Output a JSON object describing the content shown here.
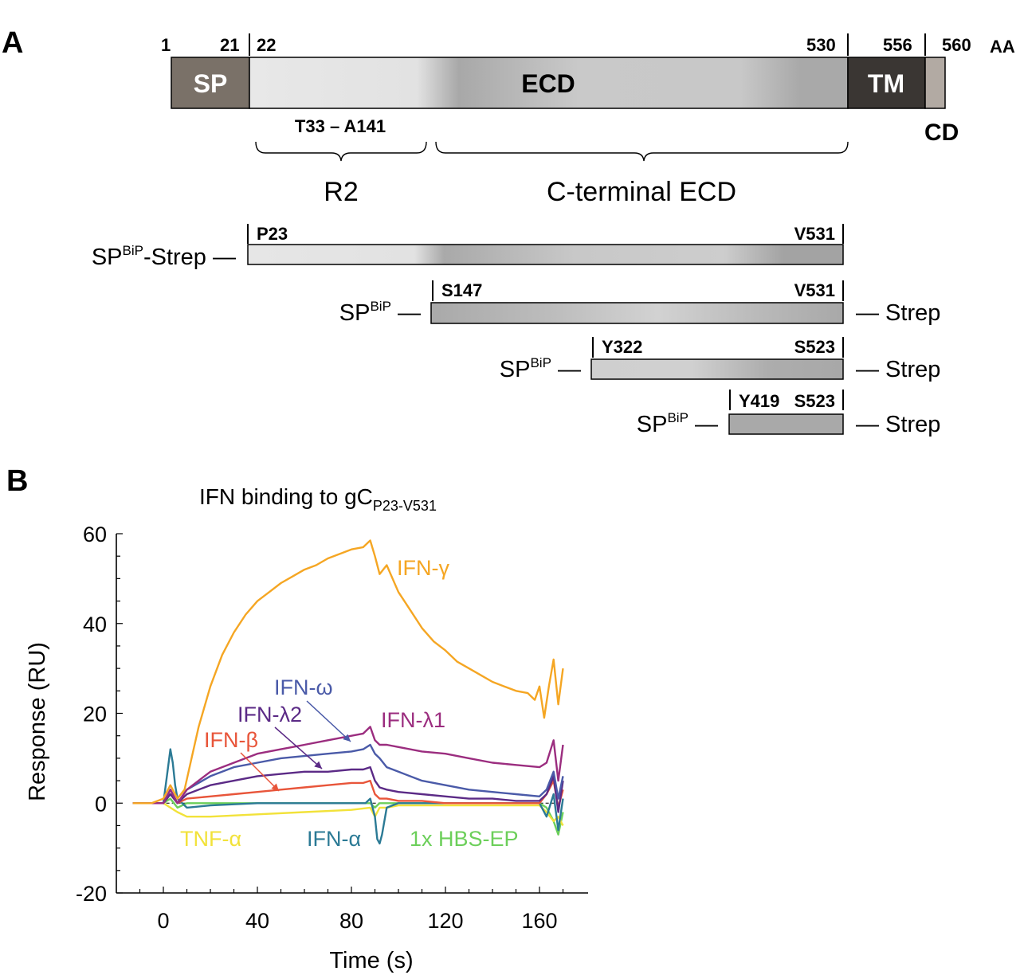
{
  "panel_a": {
    "label": "A",
    "positions": {
      "p1": "1",
      "p21": "21",
      "p22": "22",
      "p530": "530",
      "p556": "556",
      "p560": "560",
      "unit": "AA"
    },
    "domains": {
      "sp": "SP",
      "ecd": "ECD",
      "tm": "TM",
      "cd": "CD"
    },
    "range_label": "T33 – A141",
    "brace_r2": "R2",
    "brace_cterm": "C-terminal ECD",
    "constructs": [
      {
        "sp": "SP",
        "sup": "BiP",
        "prefix_suffix": "-Strep —",
        "start": "P23",
        "end": "V531",
        "suffix": ""
      },
      {
        "sp": "SP",
        "sup": "BiP",
        "prefix_suffix": " —",
        "start": "S147",
        "end": "V531",
        "suffix": "— Strep"
      },
      {
        "sp": "SP",
        "sup": "BiP",
        "prefix_suffix": " —",
        "start": "Y322",
        "end": "S523",
        "suffix": "— Strep"
      },
      {
        "sp": "SP",
        "sup": "BiP",
        "prefix_suffix": " —",
        "start": "Y419",
        "end": "S523",
        "suffix": "— Strep"
      }
    ]
  },
  "panel_b": {
    "label": "B"
  },
  "chart_data": {
    "type": "line",
    "title": "IFN binding to gC",
    "title_subscript": "P23-V531",
    "xlabel": "Time (s)",
    "ylabel": "Response (RU)",
    "xlim": [
      -15,
      170
    ],
    "ylim": [
      -20,
      60
    ],
    "xticks": [
      0,
      40,
      80,
      120,
      160
    ],
    "yticks": [
      -20,
      0,
      20,
      40,
      60
    ],
    "series": [
      {
        "name": "IFN-γ",
        "color": "#f5a623",
        "x": [
          -13,
          -5,
          0,
          3,
          6,
          9,
          12,
          15,
          20,
          25,
          30,
          35,
          40,
          45,
          50,
          55,
          60,
          65,
          70,
          75,
          80,
          85,
          88,
          90,
          92,
          95,
          100,
          105,
          110,
          115,
          120,
          125,
          130,
          135,
          140,
          145,
          150,
          155,
          158,
          160,
          162,
          164,
          166,
          168,
          170
        ],
        "y": [
          0,
          0,
          1,
          4,
          1,
          3,
          10,
          17,
          26,
          33,
          38,
          42,
          45,
          47,
          49,
          50.5,
          52,
          53,
          54.5,
          55.5,
          56.5,
          57,
          58.5,
          55,
          51,
          53,
          47,
          43,
          39,
          36,
          34,
          31.5,
          30,
          28.5,
          27,
          26,
          25,
          24.5,
          23,
          26,
          19,
          26,
          32,
          22,
          30
        ]
      },
      {
        "name": "IFN-λ1",
        "color": "#9b2d7f",
        "x": [
          -13,
          -5,
          0,
          3,
          6,
          10,
          20,
          30,
          40,
          50,
          60,
          70,
          80,
          85,
          88,
          90,
          92,
          95,
          100,
          110,
          120,
          130,
          140,
          150,
          160,
          163,
          166,
          168,
          170
        ],
        "y": [
          0,
          0,
          0,
          3,
          0,
          3,
          7,
          9,
          11,
          12,
          13,
          14,
          15,
          15.5,
          17,
          14,
          13,
          13,
          12.5,
          11.5,
          11,
          10,
          9,
          8.5,
          8,
          9,
          14,
          5,
          13
        ]
      },
      {
        "name": "IFN-ω",
        "color": "#4a5aa8",
        "x": [
          -13,
          -5,
          0,
          3,
          6,
          10,
          20,
          30,
          40,
          50,
          60,
          70,
          80,
          85,
          88,
          90,
          92,
          95,
          100,
          110,
          120,
          130,
          140,
          150,
          160,
          163,
          166,
          168,
          170
        ],
        "y": [
          0,
          0,
          0,
          3,
          0,
          3,
          6,
          8,
          9,
          10,
          10.5,
          11,
          11.5,
          12,
          13,
          11,
          10,
          8,
          7,
          5,
          4,
          3,
          2.5,
          2,
          1.5,
          3,
          7,
          1,
          6
        ]
      },
      {
        "name": "IFN-λ2",
        "color": "#5b2a86",
        "x": [
          -13,
          -5,
          0,
          3,
          6,
          10,
          20,
          30,
          40,
          50,
          60,
          70,
          80,
          85,
          88,
          90,
          92,
          95,
          100,
          110,
          120,
          130,
          140,
          150,
          160,
          163,
          166,
          168,
          170
        ],
        "y": [
          0,
          0,
          0,
          2,
          0,
          2,
          4,
          5,
          6,
          6.5,
          7,
          7,
          7.5,
          7.5,
          8,
          5,
          3.5,
          3,
          2.5,
          2,
          1.5,
          1,
          1,
          0.5,
          0.5,
          2,
          6,
          -2,
          5
        ]
      },
      {
        "name": "IFN-β",
        "color": "#e8553a",
        "x": [
          -13,
          -5,
          0,
          3,
          6,
          10,
          20,
          30,
          40,
          50,
          60,
          70,
          80,
          85,
          88,
          90,
          92,
          95,
          100,
          110,
          120,
          130,
          140,
          150,
          160,
          163,
          166,
          168,
          170
        ],
        "y": [
          0,
          0,
          0,
          2,
          0,
          1,
          1.5,
          2,
          2.5,
          3,
          3.5,
          4,
          4.5,
          4.5,
          5,
          2,
          1,
          1,
          0.5,
          0.5,
          0,
          0,
          0,
          0,
          0,
          2,
          5,
          -1,
          3
        ]
      },
      {
        "name": "IFN-α",
        "color": "#2b7a95",
        "x": [
          -13,
          -5,
          0,
          2,
          3,
          4,
          5,
          6,
          8,
          10,
          20,
          40,
          60,
          80,
          86,
          88,
          90,
          91,
          92,
          93,
          95,
          100,
          120,
          140,
          160,
          163,
          166,
          168,
          170
        ],
        "y": [
          0,
          0,
          0,
          8,
          12,
          9,
          4,
          1,
          0,
          -1,
          -0.5,
          0,
          0,
          0,
          0,
          1,
          -3,
          -8,
          -9,
          -7,
          -1,
          0,
          0,
          0,
          0,
          -3,
          2,
          -6,
          1
        ]
      },
      {
        "name": "TNF-α",
        "color": "#f2e23a",
        "x": [
          -13,
          -5,
          0,
          3,
          6,
          10,
          20,
          40,
          60,
          80,
          88,
          90,
          92,
          95,
          100,
          120,
          140,
          160,
          163,
          166,
          168,
          170
        ],
        "y": [
          0,
          0,
          0,
          -1,
          -2,
          -3,
          -3,
          -2.5,
          -2,
          -1.5,
          -1,
          -3,
          -1,
          -1,
          -0.5,
          -0.5,
          -0.5,
          -0.5,
          -2,
          -4,
          -3,
          -5
        ]
      },
      {
        "name": "1x HBS-EP",
        "color": "#6ccf5a",
        "x": [
          -13,
          -5,
          0,
          3,
          6,
          10,
          20,
          40,
          60,
          80,
          88,
          90,
          92,
          95,
          100,
          120,
          140,
          160,
          163,
          166,
          168,
          170
        ],
        "y": [
          0,
          0,
          0,
          1,
          -1,
          0,
          0,
          0,
          0,
          0,
          0,
          -1,
          0,
          0,
          0,
          0,
          0,
          0,
          -1,
          -4,
          -7,
          -2
        ]
      }
    ],
    "annotations": [
      {
        "text": "IFN-γ",
        "color": "#f5a623"
      },
      {
        "text": "IFN-ω",
        "color": "#4a5aa8"
      },
      {
        "text": "IFN-λ2",
        "color": "#5b2a86"
      },
      {
        "text": "IFN-λ1",
        "color": "#9b2d7f"
      },
      {
        "text": "IFN-β",
        "color": "#e8553a"
      },
      {
        "text": "TNF-α",
        "color": "#f2e23a"
      },
      {
        "text": "IFN-α",
        "color": "#2b7a95"
      },
      {
        "text": "1x HBS-EP",
        "color": "#6ccf5a"
      }
    ]
  }
}
